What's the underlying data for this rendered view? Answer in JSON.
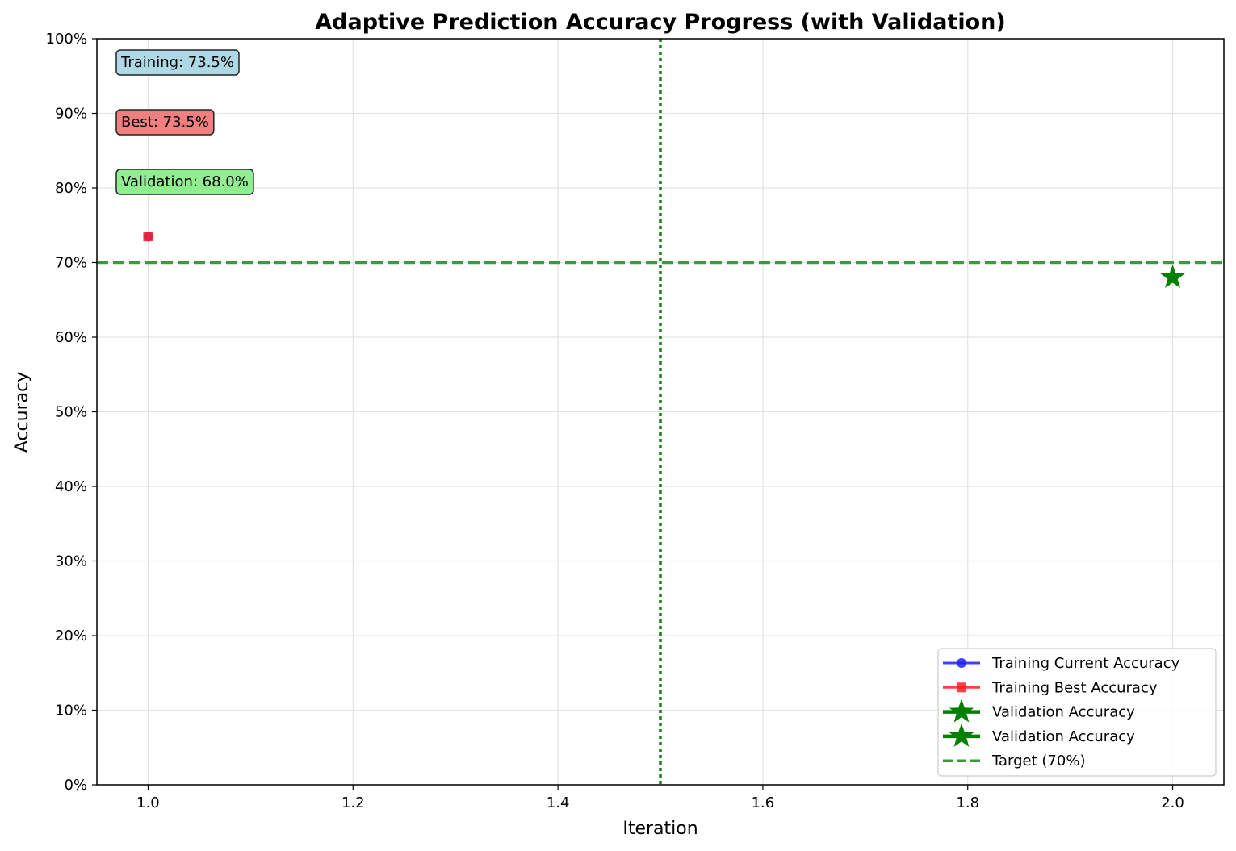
{
  "chart_data": {
    "type": "line",
    "title": "Adaptive Prediction Accuracy Progress (with Validation)",
    "xlabel": "Iteration",
    "ylabel": "Accuracy",
    "xlim": [
      0.95,
      2.05
    ],
    "ylim": [
      0,
      100
    ],
    "x_ticks": [
      1.0,
      1.2,
      1.4,
      1.6,
      1.8,
      2.0
    ],
    "x_tick_labels": [
      "1.0",
      "1.2",
      "1.4",
      "1.6",
      "1.8",
      "2.0"
    ],
    "y_ticks": [
      0,
      10,
      20,
      30,
      40,
      50,
      60,
      70,
      80,
      90,
      100
    ],
    "y_tick_labels": [
      "0%",
      "10%",
      "20%",
      "30%",
      "40%",
      "50%",
      "60%",
      "70%",
      "80%",
      "90%",
      "100%"
    ],
    "grid": true,
    "legend_position": "lower-right",
    "series": [
      {
        "name": "Training Current Accuracy",
        "color": "#1f1fff",
        "marker": "circle",
        "x": [
          1.0
        ],
        "y": [
          73.5
        ]
      },
      {
        "name": "Training Best Accuracy",
        "color": "#ff1f1f",
        "marker": "square",
        "x": [
          1.0
        ],
        "y": [
          73.5
        ]
      },
      {
        "name": "Validation Accuracy",
        "color": "#008000",
        "marker": "star",
        "x": [
          2.0
        ],
        "y": [
          68.0
        ]
      },
      {
        "name": "Validation Accuracy",
        "color": "#008000",
        "marker": "star",
        "x": [],
        "y": []
      }
    ],
    "reference_lines": [
      {
        "name": "Target (70%)",
        "orientation": "horizontal",
        "value": 70,
        "color": "#3a9a3a",
        "style": "dashed"
      },
      {
        "orientation": "vertical",
        "value": 1.5,
        "color": "#1a7f1a",
        "style": "dotted"
      }
    ],
    "annotations": [
      {
        "text": "Training: 73.5%",
        "bg": "#add8e6"
      },
      {
        "text": "Best: 73.5%",
        "bg": "#f08080"
      },
      {
        "text": "Validation: 68.0%",
        "bg": "#90ee90"
      }
    ]
  }
}
